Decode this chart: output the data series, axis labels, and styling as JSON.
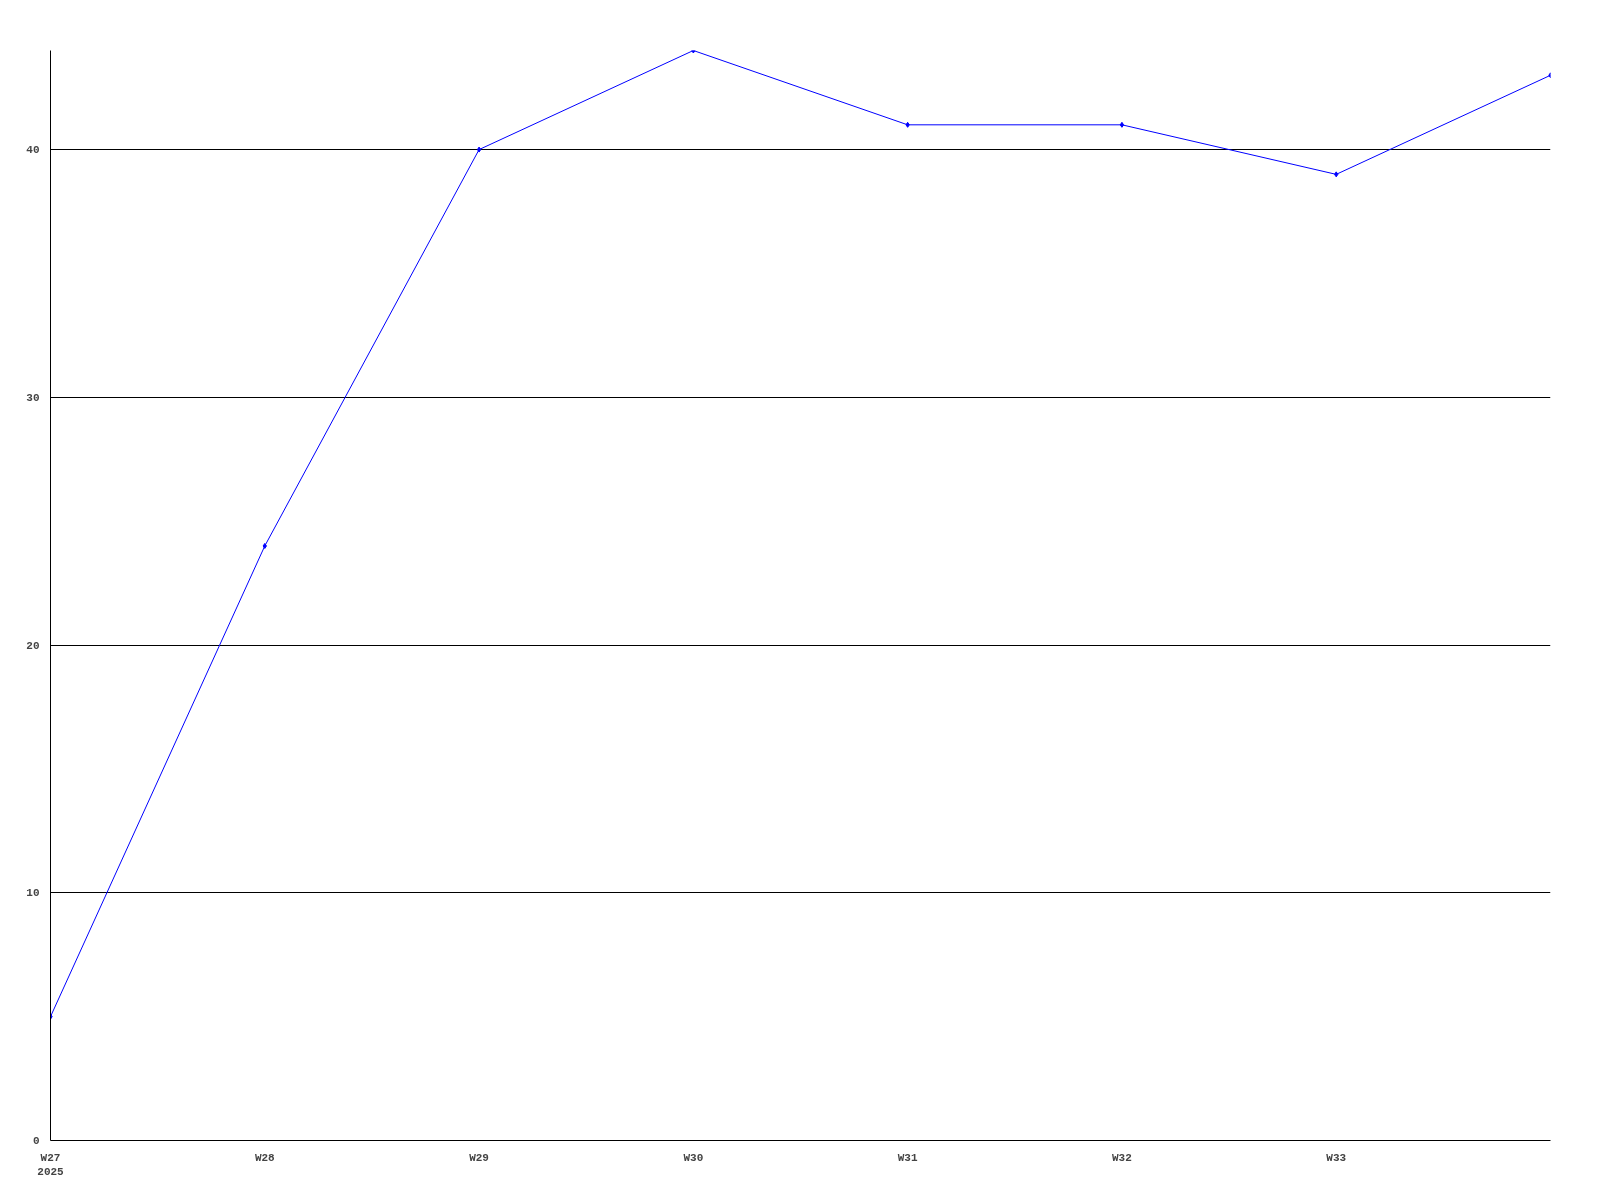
{
  "chart_data": {
    "type": "line",
    "categories": [
      "W27\n2025",
      "W28",
      "W29",
      "W30",
      "W31",
      "W32",
      "W33",
      null
    ],
    "series": [
      {
        "color": "#0000ff",
        "values": [
          5,
          24,
          40,
          44,
          41,
          41,
          39,
          43
        ]
      }
    ],
    "ylim": [
      0,
      44
    ],
    "yticks": [
      0,
      10,
      20,
      30,
      40
    ],
    "grid": "y",
    "marker": "diamond",
    "line_style": "solid"
  }
}
